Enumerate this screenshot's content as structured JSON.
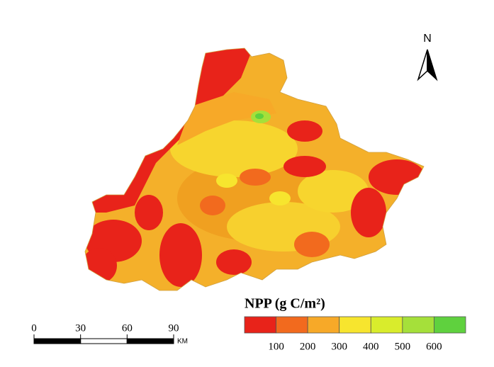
{
  "north_arrow": {
    "label": "N"
  },
  "legend": {
    "title": "NPP (g C/m²)",
    "colors": [
      "#e8231a",
      "#f26a1e",
      "#f7a928",
      "#f7e52e",
      "#d9ec2c",
      "#a5e03a",
      "#5fd13e"
    ],
    "labels": [
      100,
      200,
      300,
      400,
      500,
      600
    ]
  },
  "scale_bar": {
    "ticks": [
      0,
      30,
      60,
      90
    ],
    "unit": "KM"
  }
}
